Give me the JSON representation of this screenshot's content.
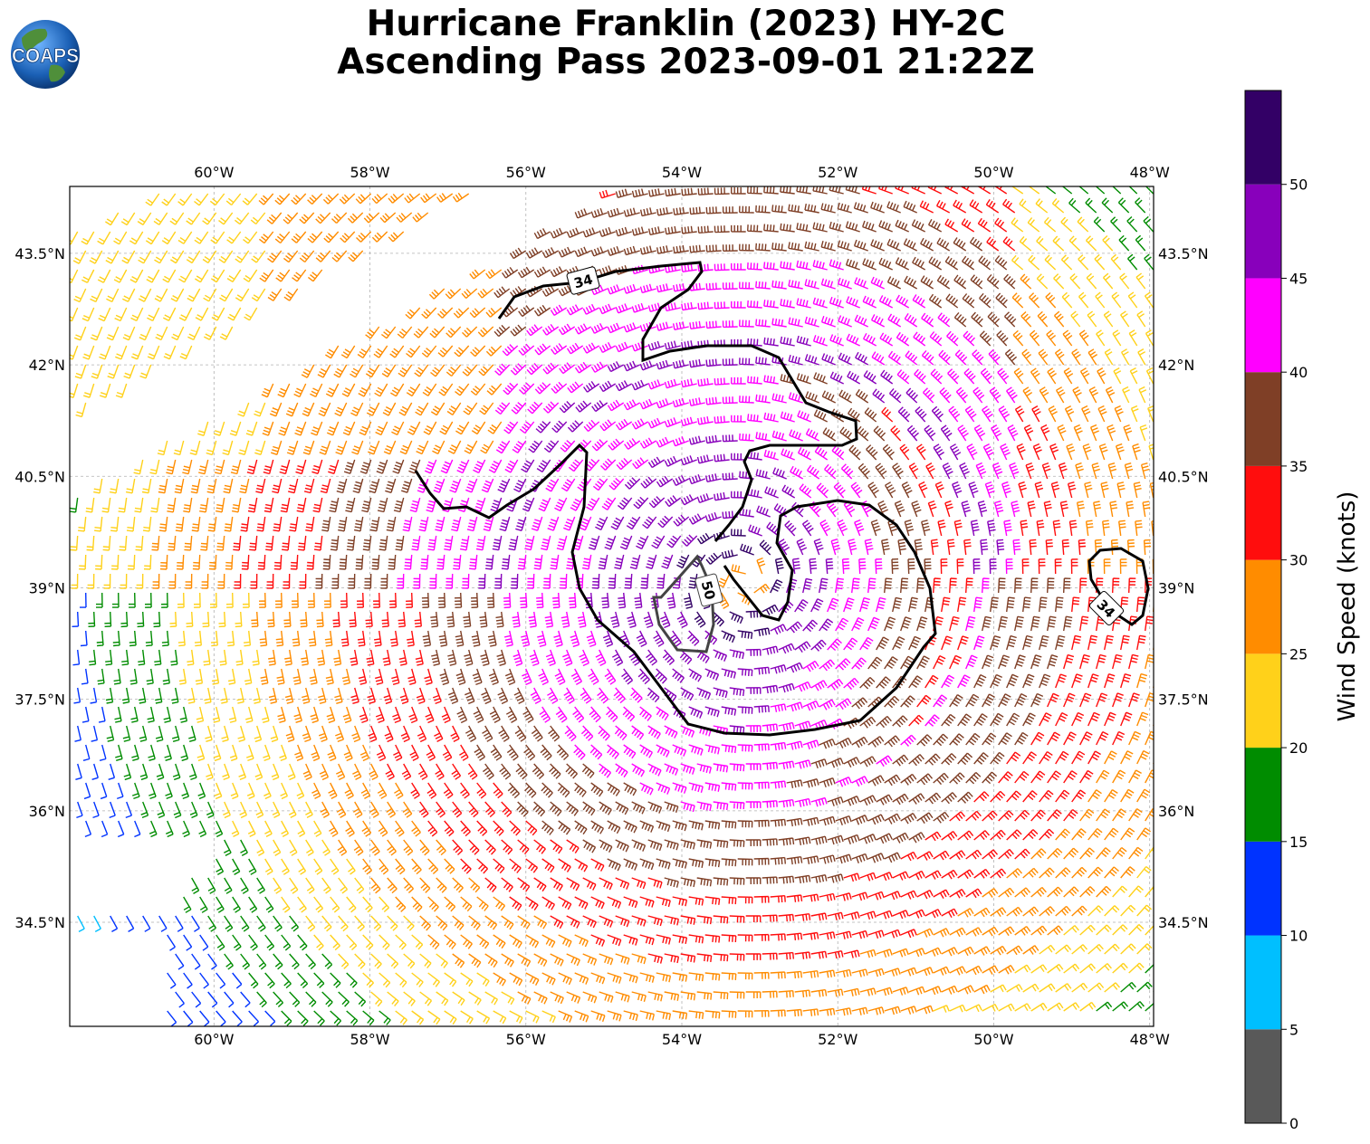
{
  "title": {
    "line1": "Hurricane Franklin (2023) HY-2C",
    "line2": "Ascending Pass 2023-09-01 21:22Z"
  },
  "logo": {
    "text": "COAPS",
    "icon": "globe-logo"
  },
  "map": {
    "lon_range": [
      -61.85,
      -47.95
    ],
    "lat_range": [
      33.1,
      44.4
    ],
    "lon_ticks": [
      {
        "value": -60,
        "label": "60°W"
      },
      {
        "value": -58,
        "label": "58°W"
      },
      {
        "value": -56,
        "label": "56°W"
      },
      {
        "value": -54,
        "label": "54°W"
      },
      {
        "value": -52,
        "label": "52°W"
      },
      {
        "value": -50,
        "label": "50°W"
      },
      {
        "value": -48,
        "label": "48°W"
      }
    ],
    "lat_ticks": [
      {
        "value": 43.5,
        "label": "43.5°N"
      },
      {
        "value": 42.0,
        "label": "42°N"
      },
      {
        "value": 40.5,
        "label": "40.5°N"
      },
      {
        "value": 39.0,
        "label": "39°N"
      },
      {
        "value": 37.5,
        "label": "37.5°N"
      },
      {
        "value": 36.0,
        "label": "36°N"
      },
      {
        "value": 34.5,
        "label": "34.5°N"
      }
    ],
    "gridlines": true,
    "storm_center": {
      "lon": -53.2,
      "lat": 39.1
    },
    "contours": [
      {
        "label": "34",
        "color": "#000000",
        "label_at": {
          "lon": -55.4,
          "lat": 43.3
        }
      },
      {
        "label": "34",
        "color": "#000000",
        "label_at": {
          "lon": -48.5,
          "lat": 38.95
        }
      },
      {
        "label": "50",
        "color": "#444444",
        "label_at": {
          "lon": -53.8,
          "lat": 39.2
        }
      }
    ]
  },
  "colorbar": {
    "label": "Wind Speed (knots)",
    "bins": [
      {
        "from": 0,
        "to": 5,
        "color": "#595959"
      },
      {
        "from": 5,
        "to": 10,
        "color": "#00bfff"
      },
      {
        "from": 10,
        "to": 15,
        "color": "#0033ff"
      },
      {
        "from": 15,
        "to": 20,
        "color": "#008c00"
      },
      {
        "from": 20,
        "to": 25,
        "color": "#ffd11a"
      },
      {
        "from": 25,
        "to": 30,
        "color": "#ff8c00"
      },
      {
        "from": 30,
        "to": 35,
        "color": "#ff0d0d"
      },
      {
        "from": 35,
        "to": 40,
        "color": "#7f3f26"
      },
      {
        "from": 40,
        "to": 45,
        "color": "#ff00ff"
      },
      {
        "from": 45,
        "to": 50,
        "color": "#8800bb"
      },
      {
        "from": 50,
        "to": 55,
        "color": "#330066"
      }
    ],
    "tick_labels": [
      "0",
      "5",
      "10",
      "15",
      "20",
      "25",
      "30",
      "35",
      "40",
      "45",
      "50"
    ]
  }
}
